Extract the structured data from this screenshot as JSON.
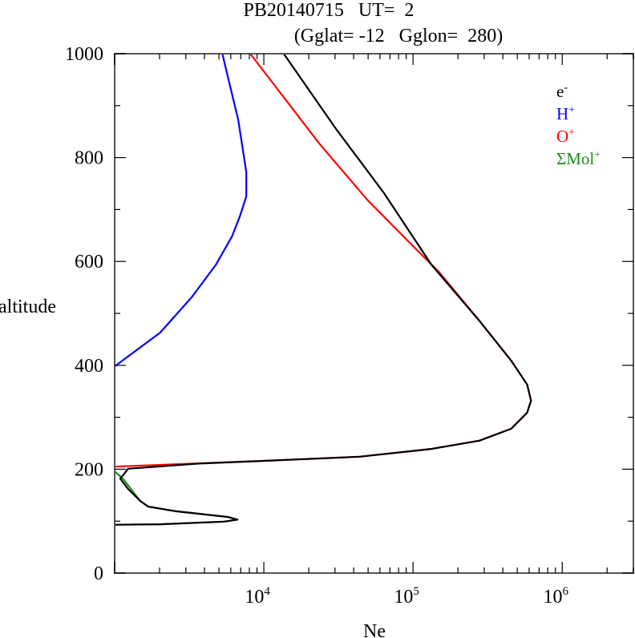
{
  "chart_data": {
    "type": "line",
    "title": "PB20140715   UT=  2",
    "subtitle": "(Gglat= -12   Gglon=  280)",
    "xlabel": "Ne",
    "ylabel": "altitude",
    "xscale": "log",
    "xlim": [
      1000,
      3000000
    ],
    "ylim": [
      0,
      1000
    ],
    "yticks": [
      0,
      200,
      400,
      600,
      800,
      1000
    ],
    "ytick_labels": [
      "0",
      "200",
      "400",
      "600",
      "800",
      "1000"
    ],
    "xticks": [
      {
        "value": 10000,
        "base": "10",
        "exp": "4"
      },
      {
        "value": 100000,
        "base": "10",
        "exp": "5"
      },
      {
        "value": 1000000,
        "base": "10",
        "exp": "6"
      }
    ],
    "legend_placement": "top-right",
    "series": [
      {
        "name": "ΣMol",
        "sup": "+",
        "color": "#1a8a1a",
        "points": [
          [
            1000,
            196
          ],
          [
            1150,
            180
          ],
          [
            1480,
            139
          ],
          [
            1680,
            128
          ],
          [
            2580,
            119
          ],
          [
            5750,
            108
          ],
          [
            6660,
            103
          ],
          [
            5400,
            99
          ],
          [
            2020,
            94
          ],
          [
            1000,
            93
          ]
        ]
      },
      {
        "name": "H",
        "sup": "+",
        "color": "#0000ff",
        "points": [
          [
            5270,
            1000
          ],
          [
            6740,
            872
          ],
          [
            7630,
            772
          ],
          [
            7630,
            725
          ],
          [
            6910,
            687
          ],
          [
            6110,
            648
          ],
          [
            4780,
            594
          ],
          [
            3300,
            532
          ],
          [
            2020,
            463
          ],
          [
            1000,
            398
          ]
        ]
      },
      {
        "name": "O",
        "sup": "+",
        "color": "#ff0000",
        "points": [
          [
            8110,
            1000
          ],
          [
            12800,
            926
          ],
          [
            23700,
            826
          ],
          [
            49600,
            718
          ],
          [
            103700,
            625
          ],
          [
            150000,
            579
          ],
          [
            278000,
            486
          ],
          [
            455000,
            409
          ],
          [
            582000,
            363
          ],
          [
            618000,
            332
          ],
          [
            582000,
            309
          ],
          [
            455000,
            278
          ],
          [
            278000,
            255
          ],
          [
            132700,
            239
          ],
          [
            43800,
            224
          ],
          [
            10000,
            216
          ],
          [
            1000,
            205
          ]
        ]
      },
      {
        "name": "e",
        "sup": "-",
        "color": "#000000",
        "points": [
          [
            13600,
            1000
          ],
          [
            30300,
            856
          ],
          [
            63400,
            733
          ],
          [
            132700,
            594
          ],
          [
            278000,
            486
          ],
          [
            455000,
            409
          ],
          [
            582000,
            363
          ],
          [
            618000,
            332
          ],
          [
            582000,
            309
          ],
          [
            455000,
            278
          ],
          [
            278000,
            255
          ],
          [
            132700,
            239
          ],
          [
            43800,
            224
          ],
          [
            10000,
            216
          ],
          [
            3730,
            211
          ],
          [
            1230,
            201
          ],
          [
            1150,
            190
          ],
          [
            1090,
            182
          ],
          [
            1230,
            162
          ],
          [
            1480,
            139
          ],
          [
            1680,
            128
          ],
          [
            2580,
            119
          ],
          [
            5750,
            108
          ],
          [
            6660,
            103
          ],
          [
            5400,
            99
          ],
          [
            2020,
            94
          ],
          [
            1000,
            93
          ]
        ]
      }
    ],
    "legend_order": [
      3,
      1,
      2,
      0
    ]
  }
}
